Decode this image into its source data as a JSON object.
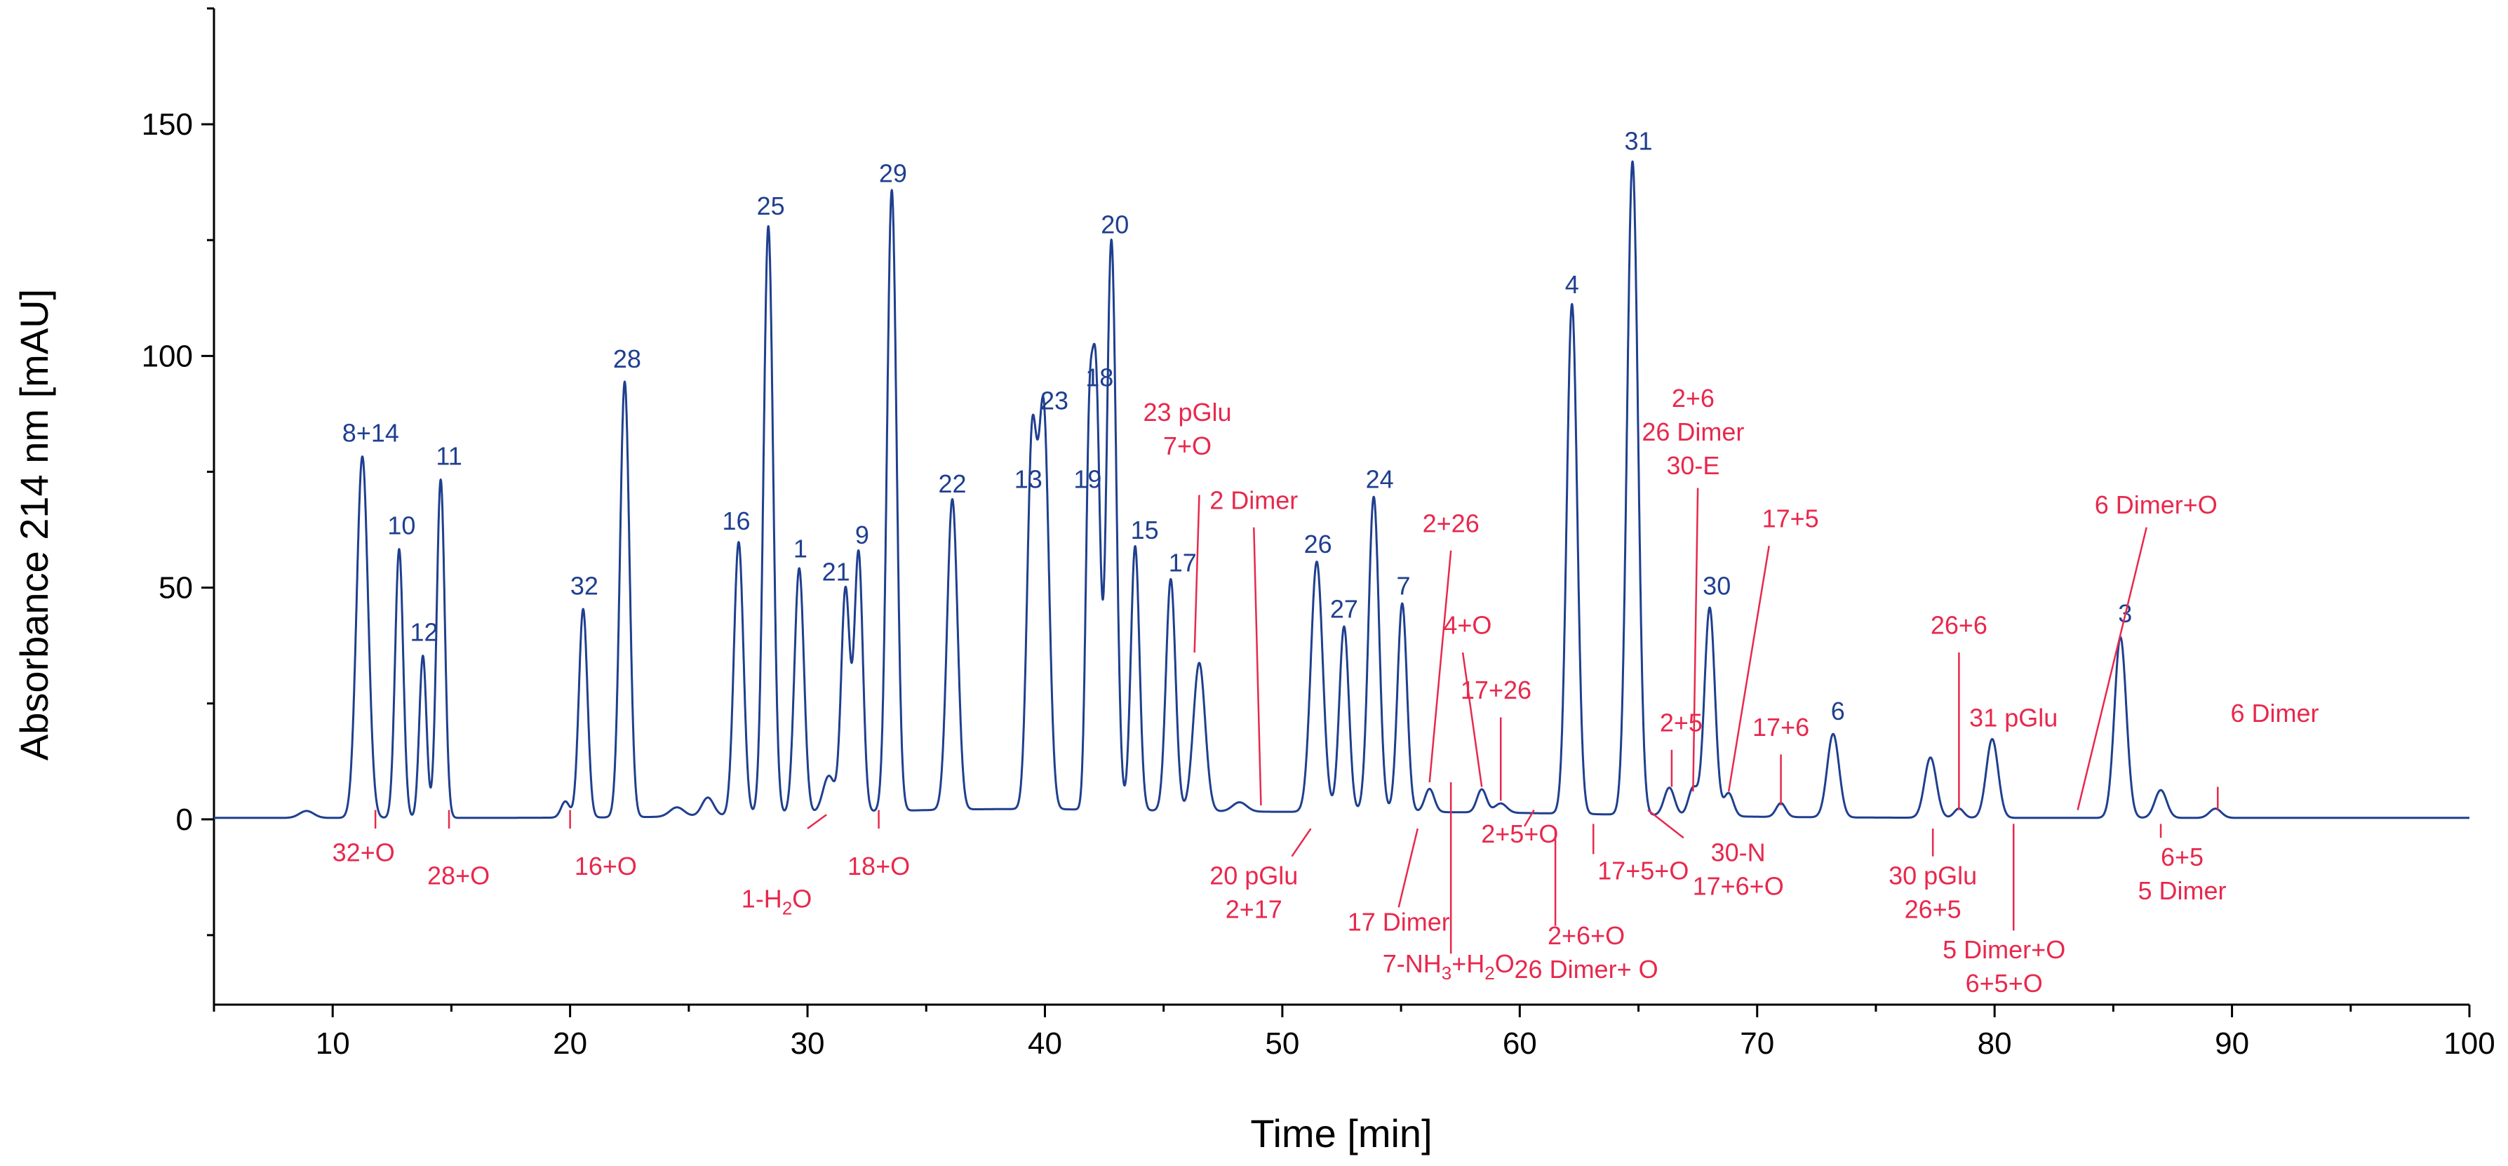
{
  "colors": {
    "trace": "#1f3f8f",
    "peak_label": "#1f3f8f",
    "annotation": "#e8284c",
    "axis": "#000000"
  },
  "chart_data": {
    "type": "line",
    "xlabel": "Time [min]",
    "ylabel": "Absorbance 214 nm [mAU]",
    "xlim": [
      5,
      100
    ],
    "ylim": [
      -40,
      175
    ],
    "xticks": [
      10,
      20,
      30,
      40,
      50,
      60,
      70,
      80,
      90,
      100
    ],
    "yticks": [
      0,
      50,
      100,
      150
    ],
    "grid": false,
    "legend": "none",
    "peaks": [
      {
        "t": 8.9,
        "h": 1.5,
        "w": 0.3
      },
      {
        "t": 11.25,
        "h": 78,
        "w": 0.24
      },
      {
        "t": 12.8,
        "h": 58,
        "w": 0.17
      },
      {
        "t": 13.8,
        "h": 35,
        "w": 0.15
      },
      {
        "t": 14.55,
        "h": 73,
        "w": 0.17
      },
      {
        "t": 19.8,
        "h": 3.5,
        "w": 0.18
      },
      {
        "t": 20.55,
        "h": 45,
        "w": 0.18
      },
      {
        "t": 22.3,
        "h": 94,
        "w": 0.2
      },
      {
        "t": 24.5,
        "h": 2,
        "w": 0.3
      },
      {
        "t": 25.8,
        "h": 4,
        "w": 0.25
      },
      {
        "t": 27.1,
        "h": 59,
        "w": 0.2
      },
      {
        "t": 28.35,
        "h": 127,
        "w": 0.2
      },
      {
        "t": 29.65,
        "h": 53,
        "w": 0.2
      },
      {
        "t": 30.9,
        "h": 8,
        "w": 0.25
      },
      {
        "t": 31.6,
        "h": 48,
        "w": 0.18
      },
      {
        "t": 32.15,
        "h": 56,
        "w": 0.18
      },
      {
        "t": 33.55,
        "h": 134,
        "w": 0.2
      },
      {
        "t": 36.1,
        "h": 67,
        "w": 0.22
      },
      {
        "t": 39.45,
        "h": 77,
        "w": 0.2
      },
      {
        "t": 39.95,
        "h": 85,
        "w": 0.22
      },
      {
        "t": 41.85,
        "h": 68,
        "w": 0.14
      },
      {
        "t": 42.15,
        "h": 90,
        "w": 0.17
      },
      {
        "t": 42.8,
        "h": 123,
        "w": 0.2
      },
      {
        "t": 43.8,
        "h": 57,
        "w": 0.18
      },
      {
        "t": 45.3,
        "h": 50,
        "w": 0.2
      },
      {
        "t": 46.5,
        "h": 32,
        "w": 0.25
      },
      {
        "t": 48.2,
        "h": 2,
        "w": 0.3
      },
      {
        "t": 51.45,
        "h": 54,
        "w": 0.25
      },
      {
        "t": 52.6,
        "h": 40,
        "w": 0.2
      },
      {
        "t": 53.85,
        "h": 68,
        "w": 0.22
      },
      {
        "t": 55.05,
        "h": 45,
        "w": 0.2
      },
      {
        "t": 56.2,
        "h": 5,
        "w": 0.2
      },
      {
        "t": 58.4,
        "h": 5,
        "w": 0.2
      },
      {
        "t": 59.2,
        "h": 2,
        "w": 0.25
      },
      {
        "t": 62.2,
        "h": 110,
        "w": 0.22
      },
      {
        "t": 64.75,
        "h": 141,
        "w": 0.23
      },
      {
        "t": 66.3,
        "h": 6,
        "w": 0.22
      },
      {
        "t": 67.3,
        "h": 6,
        "w": 0.2
      },
      {
        "t": 68.0,
        "h": 45,
        "w": 0.22
      },
      {
        "t": 68.8,
        "h": 5,
        "w": 0.2
      },
      {
        "t": 71.0,
        "h": 3,
        "w": 0.2
      },
      {
        "t": 73.2,
        "h": 18,
        "w": 0.25
      },
      {
        "t": 77.3,
        "h": 13,
        "w": 0.25
      },
      {
        "t": 78.5,
        "h": 2,
        "w": 0.2
      },
      {
        "t": 79.9,
        "h": 17,
        "w": 0.25
      },
      {
        "t": 85.3,
        "h": 39,
        "w": 0.25
      },
      {
        "t": 87.0,
        "h": 6,
        "w": 0.25
      },
      {
        "t": 89.3,
        "h": 2,
        "w": 0.25
      }
    ],
    "broad_background": [
      {
        "t": 38,
        "h": 1.8,
        "w": 7
      },
      {
        "t": 56,
        "h": 1.2,
        "w": 8
      }
    ],
    "peak_labels": [
      {
        "text": "8+14",
        "x": 11.6,
        "y": 81.5
      },
      {
        "text": "10",
        "x": 12.9,
        "y": 61.5
      },
      {
        "text": "12",
        "x": 13.85,
        "y": 38.5
      },
      {
        "text": "11",
        "x": 14.9,
        "y": 76.5
      },
      {
        "text": "32",
        "x": 20.6,
        "y": 48.5
      },
      {
        "text": "28",
        "x": 22.4,
        "y": 97.5
      },
      {
        "text": "16",
        "x": 27.0,
        "y": 62.5
      },
      {
        "text": "25",
        "x": 28.45,
        "y": 130.5
      },
      {
        "text": "1",
        "x": 29.7,
        "y": 56.5
      },
      {
        "text": "21",
        "x": 31.2,
        "y": 51.5
      },
      {
        "text": "9",
        "x": 32.3,
        "y": 59.5
      },
      {
        "text": "29",
        "x": 33.6,
        "y": 137.5
      },
      {
        "text": "22",
        "x": 36.1,
        "y": 70.5
      },
      {
        "text": "13",
        "x": 39.3,
        "y": 71.5
      },
      {
        "text": "23",
        "x": 40.4,
        "y": 88.5
      },
      {
        "text": "19",
        "x": 41.8,
        "y": 71.5
      },
      {
        "text": "18",
        "x": 42.3,
        "y": 93.5
      },
      {
        "text": "20",
        "x": 42.95,
        "y": 126.5
      },
      {
        "text": "15",
        "x": 44.2,
        "y": 60.5
      },
      {
        "text": "17",
        "x": 45.8,
        "y": 53.5
      },
      {
        "text": "26",
        "x": 51.5,
        "y": 57.5
      },
      {
        "text": "27",
        "x": 52.6,
        "y": 43.5
      },
      {
        "text": "24",
        "x": 54.1,
        "y": 71.5
      },
      {
        "text": "7",
        "x": 55.1,
        "y": 48.5
      },
      {
        "text": "4",
        "x": 62.2,
        "y": 113.5
      },
      {
        "text": "31",
        "x": 65.0,
        "y": 144.5
      },
      {
        "text": "30",
        "x": 68.3,
        "y": 48.5
      },
      {
        "text": "6",
        "x": 73.4,
        "y": 21.5
      },
      {
        "text": "3",
        "x": 85.5,
        "y": 42.5
      }
    ],
    "annotations": [
      {
        "lines": [
          "32+O"
        ],
        "x": 11.3,
        "y": -9,
        "lx": [
          11.8,
          11.8
        ],
        "ly": [
          2,
          -2
        ],
        "anchor": "middle"
      },
      {
        "lines": [
          "28+O"
        ],
        "x": 15.3,
        "y": -14,
        "lx": [
          14.9,
          14.9
        ],
        "ly": [
          2,
          -2
        ],
        "anchor": "middle"
      },
      {
        "lines": [
          "16+O"
        ],
        "x": 21.5,
        "y": -12,
        "lx": [
          20.0,
          20.0
        ],
        "ly": [
          2,
          -2
        ],
        "anchor": "middle"
      },
      {
        "lines": [
          "1-H",
          "O"
        ],
        "x": 28.7,
        "y": -19,
        "lx": [
          30.8,
          30.0
        ],
        "ly": [
          1,
          -2
        ],
        "anchor": "middle"
      },
      {
        "lines": [
          "18+O"
        ],
        "x": 33.0,
        "y": -12,
        "lx": [
          33.0,
          33.0
        ],
        "ly": [
          2,
          -2
        ],
        "anchor": "middle"
      },
      {
        "lines": [
          "23 pGlu",
          "7+O"
        ],
        "x": 46.0,
        "y": 86,
        "lx": [
          46.5,
          46.3
        ],
        "ly": [
          70,
          36
        ],
        "anchor": "middle"
      },
      {
        "lines": [
          "2 Dimer"
        ],
        "x": 48.8,
        "y": 67,
        "lx": [
          48.8,
          49.1
        ],
        "ly": [
          63,
          3
        ],
        "anchor": "middle"
      },
      {
        "lines": [
          "20 pGlu",
          "2+17"
        ],
        "x": 48.8,
        "y": -14,
        "lx": [
          50.4,
          51.2
        ],
        "ly": [
          -8,
          -2
        ],
        "anchor": "middle"
      },
      {
        "lines": [
          "17 Dimer"
        ],
        "x": 54.9,
        "y": -24,
        "lx": [
          54.9,
          55.7
        ],
        "ly": [
          -19,
          -2
        ],
        "anchor": "middle"
      },
      {
        "lines": [
          "7-NH",
          "+H",
          "O"
        ],
        "x": 57.0,
        "y": -33,
        "lx": [
          57.1,
          57.1
        ],
        "ly": [
          -29,
          8
        ],
        "anchor": "middle"
      },
      {
        "lines": [
          "2+26"
        ],
        "x": 57.1,
        "y": 62,
        "lx": [
          57.1,
          56.2
        ],
        "ly": [
          58,
          8
        ],
        "anchor": "middle"
      },
      {
        "lines": [
          "4+O"
        ],
        "x": 57.8,
        "y": 40,
        "lx": [
          57.6,
          58.4
        ],
        "ly": [
          36,
          7
        ],
        "anchor": "middle"
      },
      {
        "lines": [
          "17+26"
        ],
        "x": 59.0,
        "y": 26,
        "lx": [
          59.2,
          59.2
        ],
        "ly": [
          22,
          4
        ],
        "anchor": "middle"
      },
      {
        "lines": [
          "2+5+O"
        ],
        "x": 60.0,
        "y": -5,
        "lx": [
          60.2,
          60.6
        ],
        "ly": [
          -1.5,
          2
        ],
        "anchor": "middle"
      },
      {
        "lines": [
          "2+6+O",
          "26 Dimer+ O"
        ],
        "x": 62.8,
        "y": -27,
        "lx": [
          61.5,
          61.5
        ],
        "ly": [
          -23,
          -2
        ],
        "anchor": "middle"
      },
      {
        "lines": [
          "17+5+O"
        ],
        "x": 65.2,
        "y": -13,
        "lx": [
          63.1,
          63.1
        ],
        "ly": [
          -7.5,
          -1
        ],
        "anchor": "middle"
      },
      {
        "lines": [
          "2+5"
        ],
        "x": 66.8,
        "y": 19,
        "lx": [
          66.4,
          66.4
        ],
        "ly": [
          15,
          7
        ],
        "anchor": "middle"
      },
      {
        "lines": [
          "30-N",
          "17+6+O"
        ],
        "x": 69.2,
        "y": -9,
        "lx": [
          65.4,
          66.9
        ],
        "ly": [
          2,
          -4
        ],
        "anchor": "middle"
      },
      {
        "lines": [
          "2+6",
          "26 Dimer",
          "30-E"
        ],
        "x": 67.3,
        "y": 89,
        "lx": [
          67.5,
          67.3
        ],
        "ly": [
          71.5,
          6
        ],
        "anchor": "middle"
      },
      {
        "lines": [
          "17+5"
        ],
        "x": 71.4,
        "y": 63,
        "lx": [
          70.5,
          68.8
        ],
        "ly": [
          59,
          6
        ],
        "anchor": "middle"
      },
      {
        "lines": [
          "17+6"
        ],
        "x": 71.0,
        "y": 18,
        "lx": [
          71.0,
          71.0
        ],
        "ly": [
          14,
          3
        ],
        "anchor": "middle"
      },
      {
        "lines": [
          "30 pGlu",
          "26+5"
        ],
        "x": 77.4,
        "y": -14,
        "lx": [
          77.4,
          77.4
        ],
        "ly": [
          -8,
          -2
        ],
        "anchor": "middle"
      },
      {
        "lines": [
          "26+6"
        ],
        "x": 78.5,
        "y": 40,
        "lx": [
          78.5,
          78.5
        ],
        "ly": [
          36,
          2
        ],
        "anchor": "middle"
      },
      {
        "lines": [
          "31 pGlu"
        ],
        "x": 80.8,
        "y": 20,
        "lx": [
          80.8,
          80.8
        ],
        "ly": [
          20,
          20
        ],
        "anchor": "middle"
      },
      {
        "lines": [
          "5 Dimer+O",
          "6+5+O"
        ],
        "x": 80.4,
        "y": -30,
        "lx": [
          80.8,
          80.8
        ],
        "ly": [
          -24,
          -1
        ],
        "anchor": "middle"
      },
      {
        "lines": [
          "6 Dimer+O"
        ],
        "x": 86.8,
        "y": 66,
        "lx": [
          86.4,
          83.5
        ],
        "ly": [
          63,
          2
        ],
        "anchor": "middle"
      },
      {
        "lines": [
          "6+5",
          "5 Dimer"
        ],
        "x": 87.9,
        "y": -10,
        "lx": [
          87.0,
          87.0
        ],
        "ly": [
          -4,
          -1
        ],
        "anchor": "middle"
      },
      {
        "lines": [
          "6 Dimer"
        ],
        "x": 91.8,
        "y": 21,
        "lx": [
          89.4,
          89.4
        ],
        "ly": [
          7,
          2
        ],
        "anchor": "middle"
      }
    ]
  }
}
